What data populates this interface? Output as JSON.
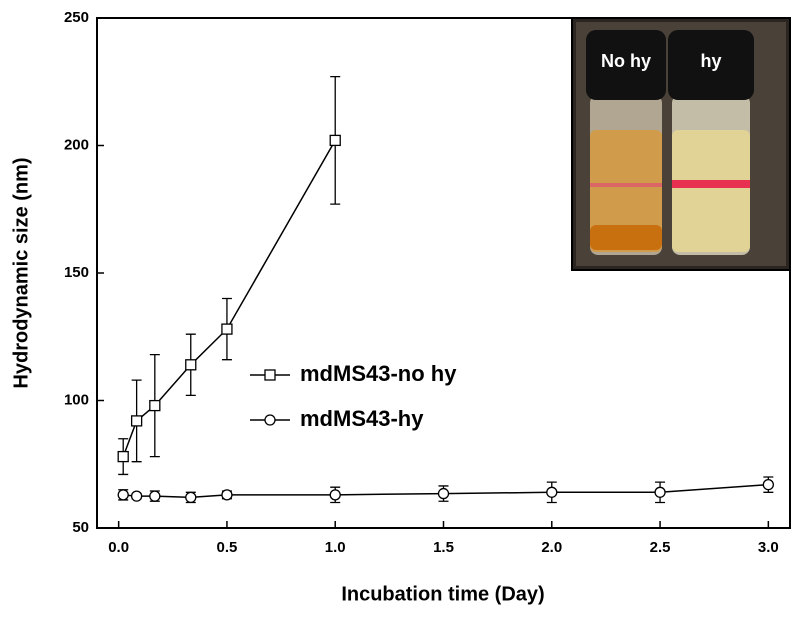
{
  "chart_data": {
    "type": "line",
    "x_label": "Incubation time (Day)",
    "y_label": "Hydrodynamic size (nm)",
    "xlim": [
      -0.1,
      3.1
    ],
    "ylim": [
      50,
      250
    ],
    "xticks": [
      {
        "value": 0,
        "label": "0.0"
      },
      {
        "value": 0.5,
        "label": "0.5"
      },
      {
        "value": 1,
        "label": "1.0"
      },
      {
        "value": 1.5,
        "label": "1.5"
      },
      {
        "value": 2,
        "label": "2.0"
      },
      {
        "value": 2.5,
        "label": "2.5"
      },
      {
        "value": 3,
        "label": "3.0"
      }
    ],
    "yticks": [
      50,
      100,
      150,
      200,
      250
    ],
    "series": [
      {
        "name": "mdMS43-no hy",
        "color": "#000000",
        "marker": "square",
        "x": [
          0.021,
          0.083,
          0.167,
          0.333,
          0.5,
          1
        ],
        "values": [
          78,
          92,
          98,
          114,
          128,
          202
        ],
        "errors": [
          7,
          16,
          20,
          12,
          12,
          25
        ]
      },
      {
        "name": "mdMS43-hy",
        "color": "#000000",
        "marker": "circle",
        "x": [
          0.021,
          0.083,
          0.167,
          0.333,
          0.5,
          1,
          1.5,
          2,
          2.5,
          3
        ],
        "values": [
          63,
          62.5,
          62.5,
          62,
          63,
          63,
          63.5,
          64,
          64,
          67
        ],
        "errors": [
          2,
          1,
          2,
          2,
          1.5,
          3,
          3,
          4,
          4,
          3
        ]
      }
    ],
    "inset_labels": [
      "No hy",
      "hy"
    ]
  }
}
